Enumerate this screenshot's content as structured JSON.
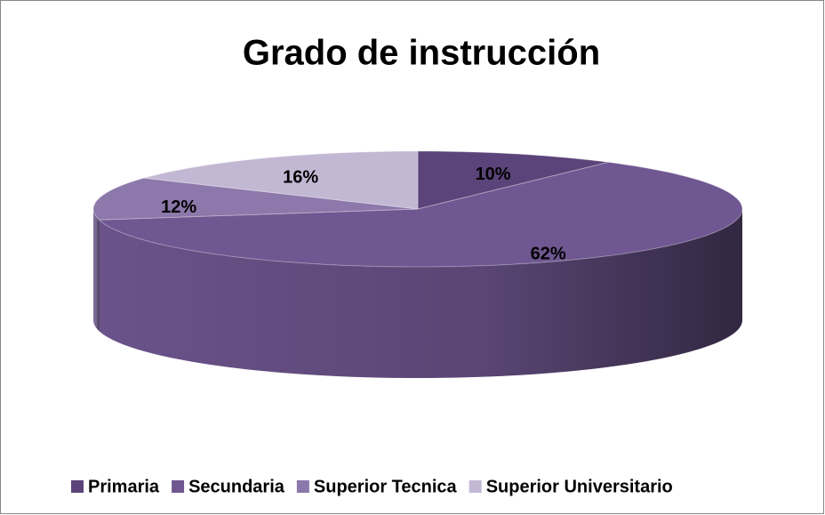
{
  "chart_data": {
    "type": "pie3d",
    "title": "Grado de instrucción",
    "categories": [
      "Primaria",
      "Secundaria",
      "Superior Tecnica",
      "Superior Universitario"
    ],
    "values": [
      10,
      62,
      12,
      16
    ],
    "value_labels": [
      "10%",
      "62%",
      "12%",
      "16%"
    ],
    "colors": [
      "#5b4479",
      "#6f5791",
      "#8c78aa",
      "#c3b8d4"
    ],
    "legend": "bottom"
  }
}
